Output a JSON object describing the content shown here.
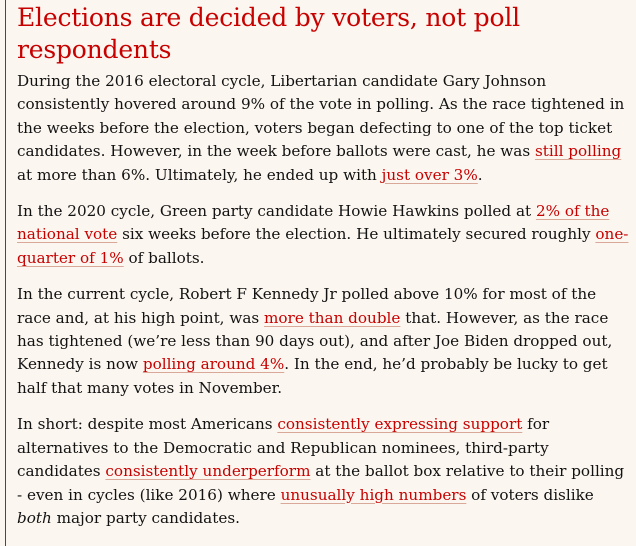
{
  "article": {
    "headline": "Elections are decided by voters, not poll respondents",
    "paragraphs": [
      {
        "segments": [
          {
            "t": "text",
            "v": "During the 2016 electoral cycle, Libertarian candidate Gary Johnson consistently hovered around 9% of the vote in polling. As the race tightened in the weeks before the election, voters began defecting to one of the top ticket candidates. However, in the week before ballots were cast, he was "
          },
          {
            "t": "link",
            "v": "still polling"
          },
          {
            "t": "text",
            "v": " at more than 6%. Ultimately, he ended up with "
          },
          {
            "t": "link",
            "v": "just over 3%"
          },
          {
            "t": "text",
            "v": "."
          }
        ]
      },
      {
        "segments": [
          {
            "t": "text",
            "v": "In the 2020 cycle, Green party candidate Howie Hawkins polled at "
          },
          {
            "t": "link",
            "v": "2% of the national vote"
          },
          {
            "t": "text",
            "v": " six weeks before the election. He ultimately secured roughly "
          },
          {
            "t": "link",
            "v": "one-quarter of 1%"
          },
          {
            "t": "text",
            "v": " of ballots."
          }
        ]
      },
      {
        "segments": [
          {
            "t": "text",
            "v": "In the current cycle, Robert F Kennedy Jr polled above 10% for most of the race and, at his high point, was "
          },
          {
            "t": "link",
            "v": "more than double"
          },
          {
            "t": "text",
            "v": " that. However, as the race has tightened (we’re less than 90 days out), and after Joe Biden dropped out, Kennedy is now "
          },
          {
            "t": "link",
            "v": "polling around 4%"
          },
          {
            "t": "text",
            "v": ". In the end, he’d probably be lucky to get half that many votes in November."
          }
        ]
      },
      {
        "segments": [
          {
            "t": "text",
            "v": "In short: despite most Americans "
          },
          {
            "t": "link",
            "v": "consistently expressing support"
          },
          {
            "t": "text",
            "v": " for alternatives to the Democratic and Republican nominees, third-party candidates "
          },
          {
            "t": "link",
            "v": "consistently underperform"
          },
          {
            "t": "text",
            "v": " at the ballot box relative to their polling - even in cycles (like 2016) where "
          },
          {
            "t": "link",
            "v": "unusually high numbers"
          },
          {
            "t": "text",
            "v": " of voters dislike "
          },
          {
            "t": "em",
            "v": "both"
          },
          {
            "t": "text",
            "v": " major party candidates."
          }
        ]
      }
    ]
  },
  "colors": {
    "accent": "#c70000",
    "background": "#fbf6ef",
    "body_text": "#121212"
  }
}
